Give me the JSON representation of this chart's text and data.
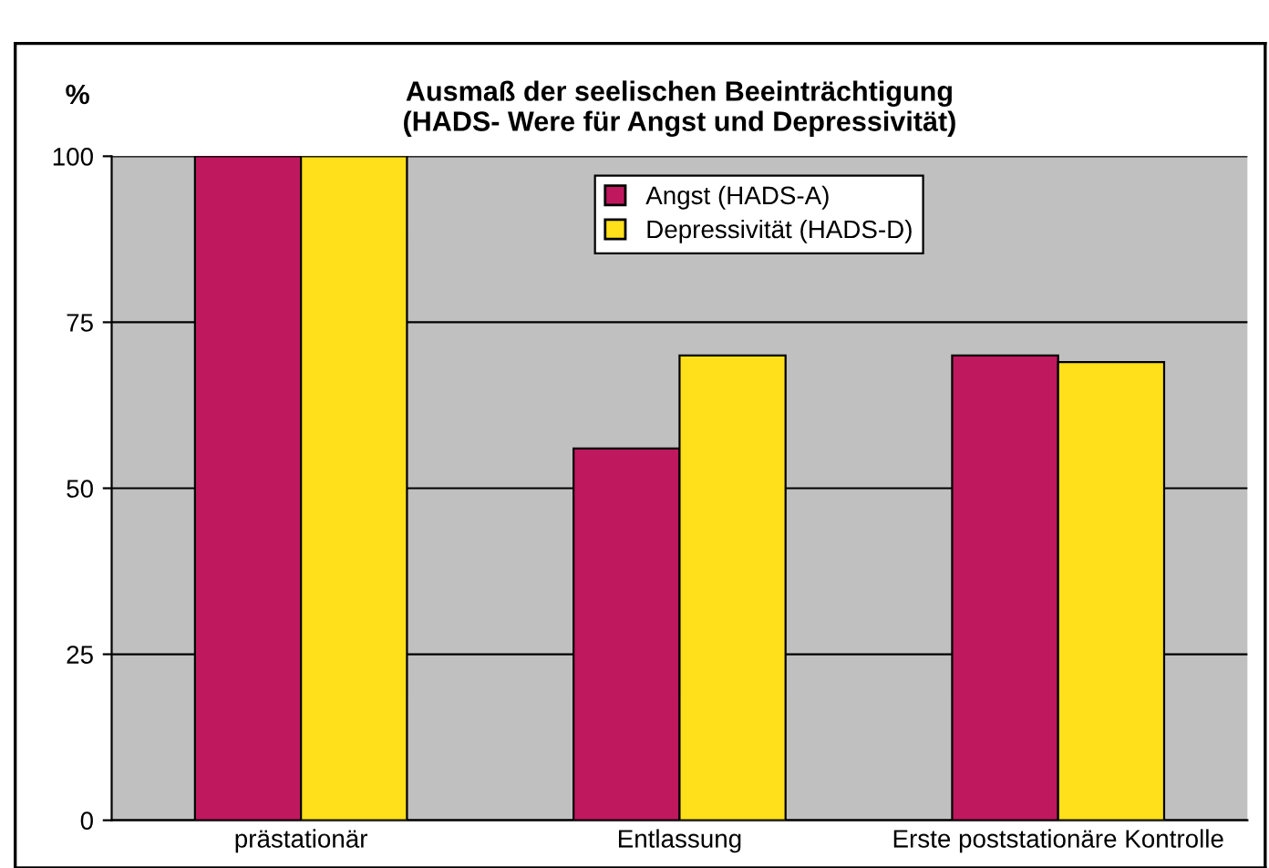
{
  "chart_data": {
    "type": "bar",
    "title": "Ausmaß der seelischen Beeinträchtigung\n(HADS- Were für Angst und Depressivität)",
    "ylabel": "%",
    "categories": [
      "prästationär",
      "Entlassung",
      "Erste poststationäre Kontrolle"
    ],
    "series": [
      {
        "name": "Angst (HADS-A)",
        "color": "#c0185f",
        "values": [
          100,
          56,
          70
        ]
      },
      {
        "name": "Depressivität (HADS-D)",
        "color": "#ffe01a",
        "values": [
          100,
          70,
          69
        ]
      }
    ],
    "ylim": [
      0,
      100
    ],
    "yticks": [
      0,
      25,
      50,
      75,
      100
    ],
    "grid": "y",
    "legend": "top center"
  }
}
